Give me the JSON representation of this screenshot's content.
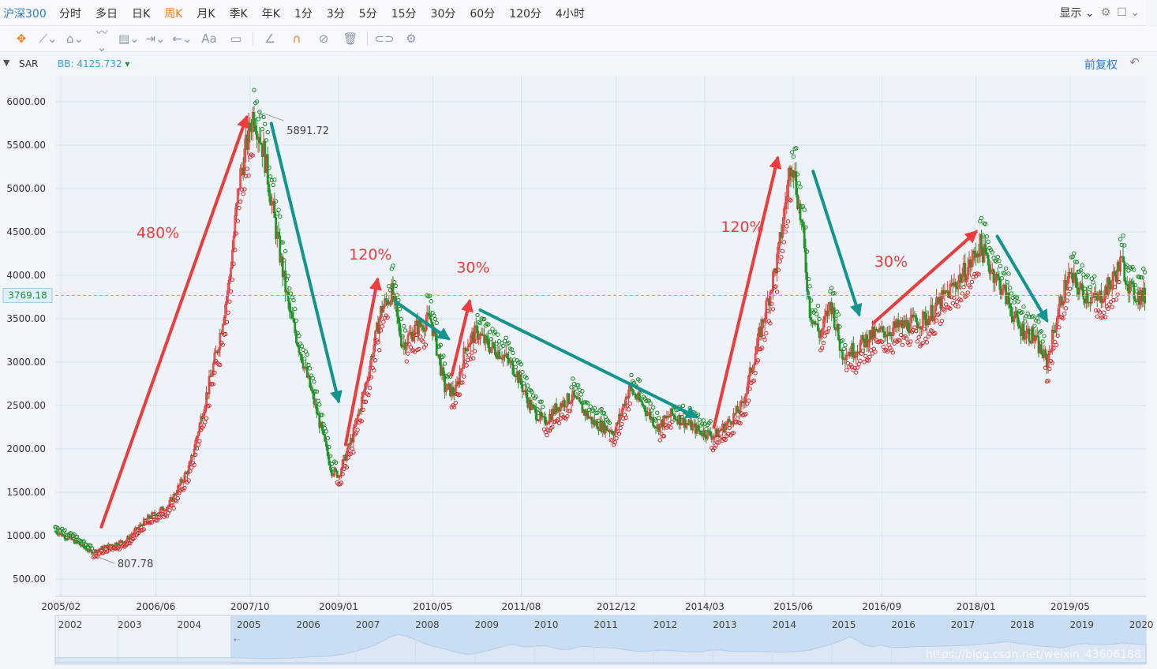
{
  "header": {
    "symbol": "沪深300",
    "tabs": [
      "分时",
      "多日",
      "日K",
      "周K",
      "月K",
      "季K",
      "年K",
      "1分",
      "3分",
      "5分",
      "15分",
      "30分",
      "60分",
      "120分",
      "4小时"
    ],
    "active_tab": "周K",
    "display_label": "显示"
  },
  "toolbar": {
    "icons": [
      "move-icon",
      "line-icon",
      "polyline-icon",
      "wave-icon",
      "fib-icon",
      "range-icon",
      "arrow-icon",
      "text-icon",
      "comment-icon",
      "ruler-icon",
      "magnet-icon",
      "hide-icon",
      "trash-icon",
      "link-icon",
      "settings-icon"
    ]
  },
  "indicator": {
    "name": "SAR",
    "bb_label": "BB: 4125.732",
    "adjust_label": "前复权"
  },
  "colors": {
    "up": "#e33b3b",
    "down": "#22962a",
    "accent_arrow_red": "#ef3b3b",
    "accent_arrow_teal": "#12958f"
  },
  "chart_data": {
    "type": "candlestick-sar",
    "title": "沪深300 周K",
    "ylim": [
      300,
      6300
    ],
    "y_ticks": [
      500,
      1000,
      1500,
      2000,
      2500,
      3000,
      3500,
      4000,
      4500,
      5000,
      5500,
      6000
    ],
    "y_tick_labels": [
      "500.00",
      "1000.00",
      "1500.00",
      "2000.00",
      "2500.00",
      "3000.00",
      "3500.00",
      "4000.00",
      "4500.00",
      "5000.00",
      "5500.00",
      "6000.00"
    ],
    "x_range": [
      2005.0,
      2020.4
    ],
    "x_ticks": [
      {
        "label": "2005/02",
        "t": 2005.08
      },
      {
        "label": "2006/06",
        "t": 2006.42
      },
      {
        "label": "2007/10",
        "t": 2007.75
      },
      {
        "label": "2009/01",
        "t": 2009.0
      },
      {
        "label": "2010/05",
        "t": 2010.33
      },
      {
        "label": "2011/08",
        "t": 2011.58
      },
      {
        "label": "2012/12",
        "t": 2012.92
      },
      {
        "label": "2014/03",
        "t": 2014.17
      },
      {
        "label": "2015/06",
        "t": 2015.42
      },
      {
        "label": "2016/09",
        "t": 2016.67
      },
      {
        "label": "2018/01",
        "t": 2018.0
      },
      {
        "label": "2019/05",
        "t": 2019.33
      }
    ],
    "current_price": 3769.18,
    "current_price_label": "3769.18",
    "annotations": {
      "high_label": "5891.72",
      "high": {
        "t": 2007.8,
        "v": 5891.72
      },
      "low_label": "807.78",
      "low": {
        "t": 2005.5,
        "v": 807.78
      }
    },
    "price_path": [
      [
        2005.0,
        1050
      ],
      [
        2005.3,
        920
      ],
      [
        2005.5,
        808
      ],
      [
        2005.8,
        900
      ],
      [
        2006.0,
        950
      ],
      [
        2006.3,
        1200
      ],
      [
        2006.6,
        1350
      ],
      [
        2006.9,
        1800
      ],
      [
        2007.1,
        2500
      ],
      [
        2007.3,
        3200
      ],
      [
        2007.45,
        3900
      ],
      [
        2007.6,
        5100
      ],
      [
        2007.8,
        5891
      ],
      [
        2007.95,
        5400
      ],
      [
        2008.1,
        4600
      ],
      [
        2008.3,
        3600
      ],
      [
        2008.5,
        3000
      ],
      [
        2008.7,
        2400
      ],
      [
        2008.9,
        1750
      ],
      [
        2009.0,
        1700
      ],
      [
        2009.2,
        2150
      ],
      [
        2009.4,
        2800
      ],
      [
        2009.6,
        3600
      ],
      [
        2009.75,
        3800
      ],
      [
        2009.9,
        3200
      ],
      [
        2010.1,
        3400
      ],
      [
        2010.3,
        3500
      ],
      [
        2010.5,
        2700
      ],
      [
        2010.65,
        2650
      ],
      [
        2010.8,
        3200
      ],
      [
        2010.95,
        3350
      ],
      [
        2011.1,
        3200
      ],
      [
        2011.3,
        3100
      ],
      [
        2011.5,
        2900
      ],
      [
        2011.7,
        2500
      ],
      [
        2011.9,
        2300
      ],
      [
        2012.1,
        2500
      ],
      [
        2012.3,
        2600
      ],
      [
        2012.6,
        2300
      ],
      [
        2012.9,
        2200
      ],
      [
        2013.1,
        2700
      ],
      [
        2013.3,
        2500
      ],
      [
        2013.5,
        2250
      ],
      [
        2013.7,
        2400
      ],
      [
        2013.9,
        2300
      ],
      [
        2014.1,
        2200
      ],
      [
        2014.3,
        2150
      ],
      [
        2014.5,
        2300
      ],
      [
        2014.7,
        2500
      ],
      [
        2014.85,
        3000
      ],
      [
        2015.0,
        3500
      ],
      [
        2015.2,
        4200
      ],
      [
        2015.4,
        5380
      ],
      [
        2015.55,
        4500
      ],
      [
        2015.65,
        3600
      ],
      [
        2015.8,
        3300
      ],
      [
        2015.95,
        3700
      ],
      [
        2016.1,
        3100
      ],
      [
        2016.3,
        3150
      ],
      [
        2016.5,
        3300
      ],
      [
        2016.7,
        3350
      ],
      [
        2016.9,
        3400
      ],
      [
        2017.1,
        3450
      ],
      [
        2017.3,
        3500
      ],
      [
        2017.5,
        3700
      ],
      [
        2017.7,
        3900
      ],
      [
        2017.9,
        4100
      ],
      [
        2018.05,
        4350
      ],
      [
        2018.2,
        4100
      ],
      [
        2018.4,
        3800
      ],
      [
        2018.6,
        3400
      ],
      [
        2018.8,
        3300
      ],
      [
        2019.0,
        3000
      ],
      [
        2019.15,
        3550
      ],
      [
        2019.3,
        4000
      ],
      [
        2019.5,
        3800
      ],
      [
        2019.7,
        3700
      ],
      [
        2019.9,
        3900
      ],
      [
        2020.05,
        4150
      ],
      [
        2020.2,
        3800
      ],
      [
        2020.35,
        3750
      ]
    ],
    "trend_arrows": [
      {
        "label": "480%",
        "from": [
          2005.65,
          1100
        ],
        "to": [
          2007.7,
          5820
        ],
        "color": "red"
      },
      {
        "label": "",
        "from": [
          2008.05,
          5750
        ],
        "to": [
          2009.0,
          2550
        ],
        "color": "teal"
      },
      {
        "label": "120%",
        "from": [
          2009.1,
          2050
        ],
        "to": [
          2009.55,
          3950
        ],
        "color": "red"
      },
      {
        "label": "",
        "from": [
          2009.8,
          3700
        ],
        "to": [
          2010.55,
          3270
        ],
        "color": "teal"
      },
      {
        "label": "30%",
        "from": [
          2010.6,
          2850
        ],
        "to": [
          2010.85,
          3700
        ],
        "color": "red"
      },
      {
        "label": "",
        "from": [
          2011.0,
          3600
        ],
        "to": [
          2014.05,
          2370
        ],
        "color": "teal"
      },
      {
        "label": "120%",
        "from": [
          2014.3,
          2250
        ],
        "to": [
          2015.2,
          5350
        ],
        "color": "red"
      },
      {
        "label": "",
        "from": [
          2015.7,
          5200
        ],
        "to": [
          2016.35,
          3550
        ],
        "color": "teal"
      },
      {
        "label": "30%",
        "from": [
          2016.55,
          3450
        ],
        "to": [
          2018.0,
          4500
        ],
        "color": "red"
      },
      {
        "label": "",
        "from": [
          2018.3,
          4450
        ],
        "to": [
          2019.0,
          3480
        ],
        "color": "teal"
      }
    ],
    "arrow_labels": [
      {
        "text": "480%",
        "t": 2006.45,
        "v": 4430
      },
      {
        "text": "120%",
        "t": 2009.45,
        "v": 4180
      },
      {
        "text": "30%",
        "t": 2010.9,
        "v": 4030
      },
      {
        "text": "120%",
        "t": 2014.7,
        "v": 4500
      },
      {
        "text": "30%",
        "t": 2016.8,
        "v": 4100
      }
    ]
  },
  "navigator": {
    "years": [
      "2002",
      "2003",
      "2004",
      "2005",
      "2006",
      "2007",
      "2008",
      "2009",
      "2010",
      "2011",
      "2012",
      "2013",
      "2014",
      "2015",
      "2016",
      "2017",
      "2018",
      "2019",
      "2020"
    ]
  },
  "watermark": "https://blog.csdn.net/weixin_43606188"
}
